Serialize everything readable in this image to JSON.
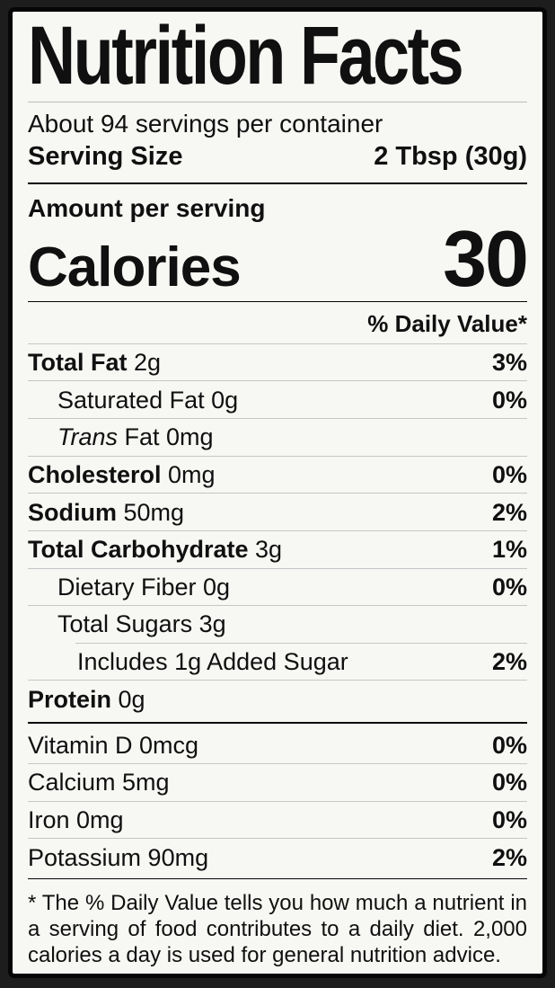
{
  "colors": {
    "page_background": "#1d1d1d",
    "label_background": "#f7f7f4",
    "frame": "#060606",
    "divider": "#c6c6c6",
    "text": "#101010"
  },
  "label": {
    "title": "Nutrition Facts",
    "servings_per_container": "About 94 servings per container",
    "serving_size_label": "Serving Size",
    "serving_size_value": "2 Tbsp (30g)",
    "amount_per_serving": "Amount per serving",
    "calories_label": "Calories",
    "calories_value": "30",
    "daily_value_header": "% Daily Value*",
    "nutrients": [
      {
        "bold": "Total Fat",
        "regular": " 2g",
        "dv": "3%"
      },
      {
        "bold": "",
        "regular": "Saturated Fat 0g",
        "dv": "0%"
      },
      {
        "italic": "Trans",
        "regular": " Fat 0mg",
        "dv": ""
      },
      {
        "bold": "Cholesterol",
        "regular": " 0mg",
        "dv": "0%"
      },
      {
        "bold": "Sodium",
        "regular": " 50mg",
        "dv": "2%"
      },
      {
        "bold": "Total Carbohydrate",
        "regular": " 3g",
        "dv": "1%"
      },
      {
        "bold": "",
        "regular": "Dietary Fiber 0g",
        "dv": "0%"
      },
      {
        "bold": "",
        "regular": "Total Sugars 3g",
        "dv": ""
      },
      {
        "bold": "",
        "regular": "Includes 1g Added Sugar",
        "dv": "2%"
      },
      {
        "bold": "Protein",
        "regular": " 0g",
        "dv": ""
      }
    ],
    "vitamins": [
      {
        "name": "Vitamin D 0mcg",
        "dv": "0%"
      },
      {
        "name": "Calcium 5mg",
        "dv": "0%"
      },
      {
        "name": "Iron 0mg",
        "dv": "0%"
      },
      {
        "name": "Potassium 90mg",
        "dv": "2%"
      }
    ],
    "footnote": "* The % Daily Value tells you how much a nutrient in a serving of food contributes to a daily diet. 2,000 calories a day is used for general nutrition advice."
  }
}
